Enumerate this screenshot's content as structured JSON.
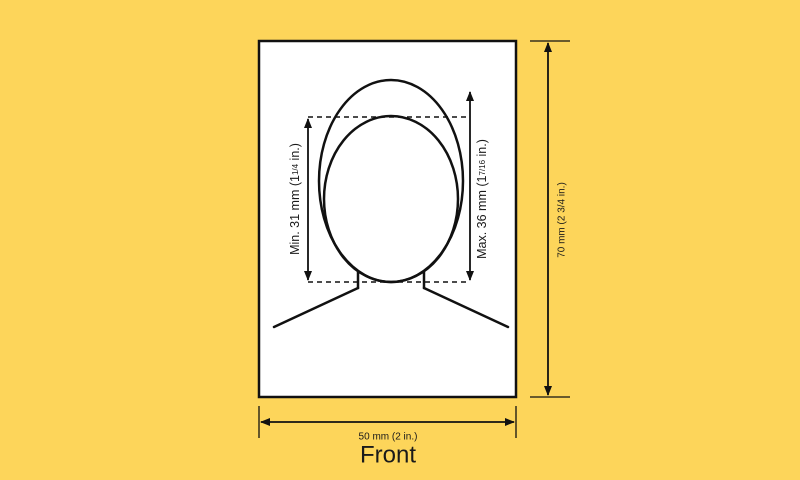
{
  "colors": {
    "background": "#FDD55A",
    "photo": "#FFFFFF",
    "line": "#111111"
  },
  "labels": {
    "min_head": {
      "main": "Min. 31 mm (1",
      "frac": "1/4",
      "end": " in.)"
    },
    "max_head": {
      "main": "Max. 36 mm (1",
      "frac": "7/16",
      "end": " in.)"
    },
    "height": "70 mm (2 3/4 in.)",
    "width": "50 mm (2 in.)",
    "caption": "Front"
  }
}
